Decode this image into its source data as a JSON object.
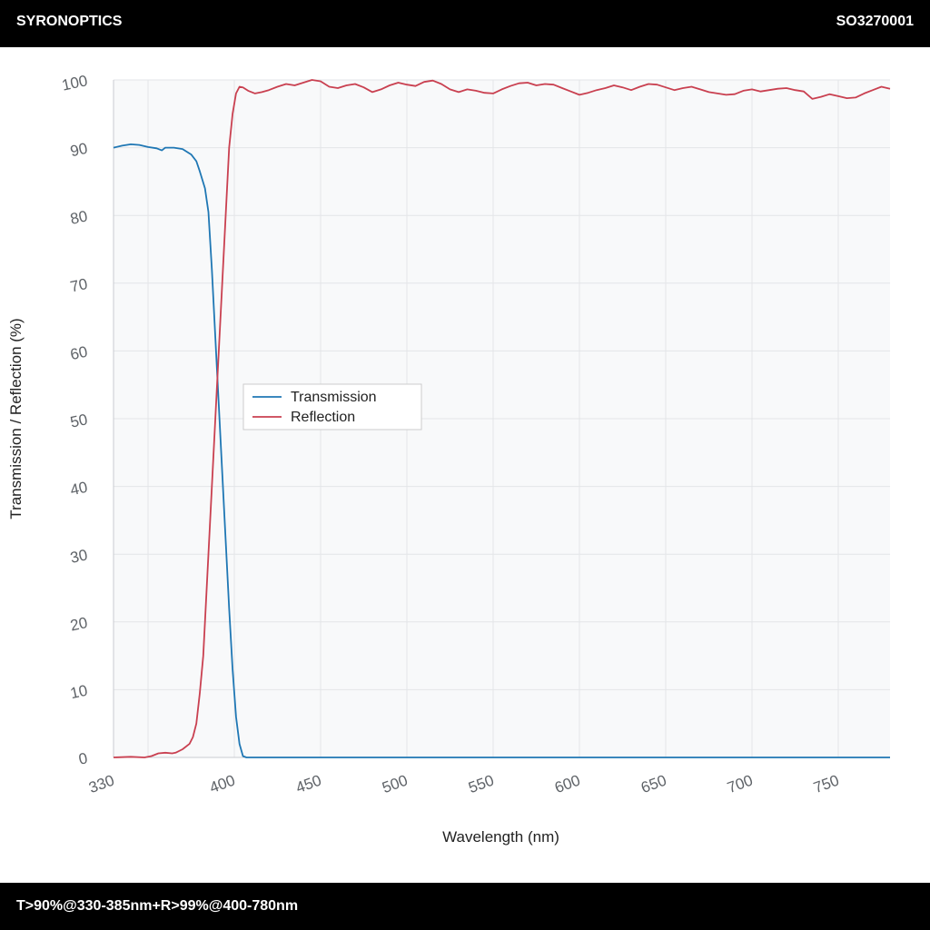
{
  "header": {
    "brand": "SYRONOPTICS",
    "code": "SO3270001"
  },
  "footer": {
    "spec": "T>90%@330-385nm+R>99%@400-780nm"
  },
  "colors": {
    "transmission": "#1f77b4",
    "reflection": "#c94050",
    "plot_bg": "#f8f9fa",
    "grid": "#e3e5e8"
  },
  "chart_data": {
    "type": "line",
    "xlabel": "Wavelength (nm)",
    "ylabel": "Transmission / Reflection (%)",
    "xlim": [
      330,
      780
    ],
    "ylim": [
      0,
      100
    ],
    "xticks": [
      330,
      400,
      450,
      500,
      550,
      600,
      650,
      700,
      750
    ],
    "yticks": [
      0,
      10,
      20,
      30,
      40,
      50,
      60,
      70,
      80,
      90,
      100
    ],
    "grid": true,
    "legend_position": "center-left",
    "series": [
      {
        "name": "Transmission",
        "color": "#1f77b4",
        "x": [
          330,
          335,
          340,
          345,
          350,
          355,
          358,
          360,
          365,
          370,
          375,
          378,
          380,
          383,
          385,
          387,
          389,
          391,
          393,
          395,
          397,
          399,
          401,
          403,
          405,
          407,
          409,
          411,
          413,
          415,
          420,
          450,
          500,
          550,
          600,
          650,
          700,
          750,
          780
        ],
        "y": [
          90.0,
          90.3,
          90.5,
          90.4,
          90.1,
          89.9,
          89.6,
          90.0,
          90.0,
          89.8,
          89.0,
          88.0,
          86.5,
          84.0,
          80.5,
          72.0,
          62.0,
          52.0,
          42.0,
          32.0,
          22.0,
          13.0,
          6.0,
          2.0,
          0.2,
          0.0,
          0.0,
          0.0,
          0.0,
          0.0,
          0.0,
          0.0,
          0.0,
          0.0,
          0.0,
          0.0,
          0.0,
          0.0,
          0.0
        ]
      },
      {
        "name": "Reflection",
        "color": "#c94050",
        "x": [
          330,
          340,
          348,
          352,
          356,
          360,
          364,
          366,
          370,
          374,
          376,
          378,
          380,
          382,
          383,
          385,
          387,
          389,
          391,
          393,
          395,
          397,
          399,
          401,
          403,
          405,
          408,
          412,
          416,
          420,
          425,
          430,
          435,
          440,
          445,
          450,
          455,
          460,
          465,
          470,
          475,
          480,
          485,
          490,
          495,
          500,
          505,
          510,
          515,
          520,
          525,
          530,
          535,
          540,
          545,
          550,
          555,
          560,
          565,
          570,
          575,
          580,
          585,
          590,
          595,
          600,
          605,
          610,
          615,
          620,
          625,
          630,
          635,
          640,
          645,
          650,
          655,
          660,
          665,
          670,
          675,
          680,
          685,
          690,
          695,
          700,
          705,
          710,
          715,
          720,
          725,
          730,
          735,
          740,
          745,
          750,
          755,
          760,
          765,
          770,
          775,
          780
        ],
        "y": [
          0.0,
          0.1,
          0.0,
          0.2,
          0.6,
          0.7,
          0.6,
          0.7,
          1.2,
          2.0,
          3.0,
          5.0,
          9.5,
          15.0,
          20.0,
          30.0,
          40.0,
          50.0,
          60.0,
          70.0,
          80.0,
          90.0,
          95.0,
          98.0,
          99.0,
          98.9,
          98.4,
          98.0,
          98.2,
          98.5,
          99.0,
          99.4,
          99.2,
          99.6,
          100.0,
          99.8,
          99.0,
          98.8,
          99.2,
          99.4,
          98.9,
          98.2,
          98.6,
          99.2,
          99.6,
          99.3,
          99.1,
          99.7,
          99.9,
          99.4,
          98.6,
          98.2,
          98.6,
          98.4,
          98.1,
          98.0,
          98.6,
          99.1,
          99.5,
          99.6,
          99.2,
          99.4,
          99.3,
          98.8,
          98.3,
          97.8,
          98.1,
          98.5,
          98.8,
          99.2,
          98.9,
          98.5,
          99.0,
          99.4,
          99.3,
          98.9,
          98.5,
          98.8,
          99.0,
          98.6,
          98.2,
          98.0,
          97.8,
          97.9,
          98.4,
          98.6,
          98.3,
          98.5,
          98.7,
          98.8,
          98.5,
          98.3,
          97.2,
          97.5,
          97.9,
          97.6,
          97.3,
          97.4,
          98.0,
          98.5,
          99.0,
          98.7
        ]
      }
    ]
  }
}
